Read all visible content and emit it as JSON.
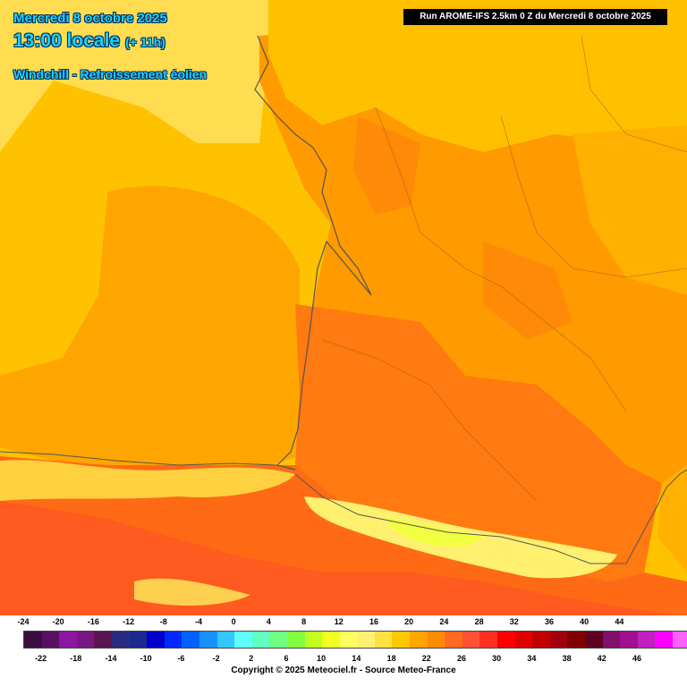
{
  "header": {
    "date": "Mercredi 8 octobre 2025",
    "time": "13:00 locale",
    "offset": "(+ 11h)",
    "parameter": "Windchill - Refroissement éolien"
  },
  "run_info": "Run AROME-IFS 2.5km 0 Z du Mercredi 8 octobre 2025",
  "legend": {
    "top_labels": [
      "-24",
      "-20",
      "-16",
      "-12",
      "-8",
      "-4",
      "0",
      "4",
      "8",
      "12",
      "16",
      "20",
      "24",
      "28",
      "32",
      "36",
      "40",
      "44"
    ],
    "bottom_labels": [
      "-22",
      "-18",
      "-14",
      "-10",
      "-6",
      "-2",
      "2",
      "6",
      "10",
      "14",
      "18",
      "22",
      "26",
      "30",
      "34",
      "38",
      "42",
      "46"
    ],
    "colors": [
      "#3a0f3f",
      "#5a1060",
      "#8c16a0",
      "#7a1880",
      "#5a1450",
      "#2a2a80",
      "#1a2a90",
      "#0000cc",
      "#0028ff",
      "#0060ff",
      "#1a90ff",
      "#30c8ff",
      "#60ffff",
      "#60ffc0",
      "#70ff80",
      "#80ff40",
      "#c0ff20",
      "#f0ff20",
      "#ffff60",
      "#fff070",
      "#ffe040",
      "#ffc800",
      "#ffa500",
      "#ff8c00",
      "#ff6a20",
      "#ff5030",
      "#ff3020",
      "#ff0000",
      "#e00000",
      "#c00000",
      "#a00010",
      "#800000",
      "#600020",
      "#80106a",
      "#a01090",
      "#c020c0",
      "#ff00ff",
      "#ff60ff",
      "#ff90ff"
    ],
    "copyright": "Copyright © 2025 Meteociel.fr - Source Meteo-France"
  },
  "map": {
    "region": "Sud-Ouest France / Golfe de Gascogne",
    "field_colors": {
      "sea_north": "#ffdc50",
      "sea_mid": "#ffc200",
      "sea_south": "#ffa500",
      "land_main": "#ff9a00",
      "land_hot": "#ff7a10",
      "land_hotter": "#ff5a20",
      "mountain_cool": "#fff070",
      "mountain_cold": "#f0ff40",
      "coastline": "#555555"
    }
  }
}
